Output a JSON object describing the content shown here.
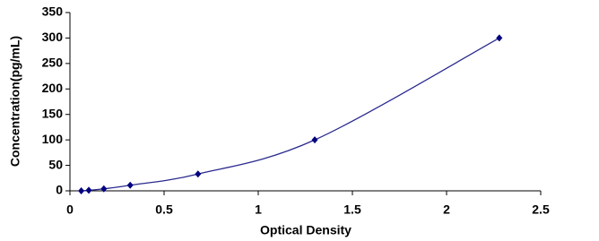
{
  "chart_data": {
    "type": "scatter",
    "x_label": "Optical Density",
    "y_label": "Concentration(pg/mL)",
    "x": [
      0.06,
      0.1,
      0.18,
      0.32,
      0.68,
      1.3,
      2.28
    ],
    "values": [
      0,
      1,
      4,
      11,
      33,
      100,
      300
    ],
    "color": "#00007f",
    "line_color": "#2a2a8f",
    "xlim": [
      0,
      2.5
    ],
    "xticks": [
      0,
      0.5,
      1,
      1.5,
      2,
      2.5
    ],
    "ylim": [
      0,
      350
    ],
    "yticks": [
      0,
      50,
      100,
      150,
      200,
      250,
      300,
      350
    ],
    "smooth_line": true
  }
}
